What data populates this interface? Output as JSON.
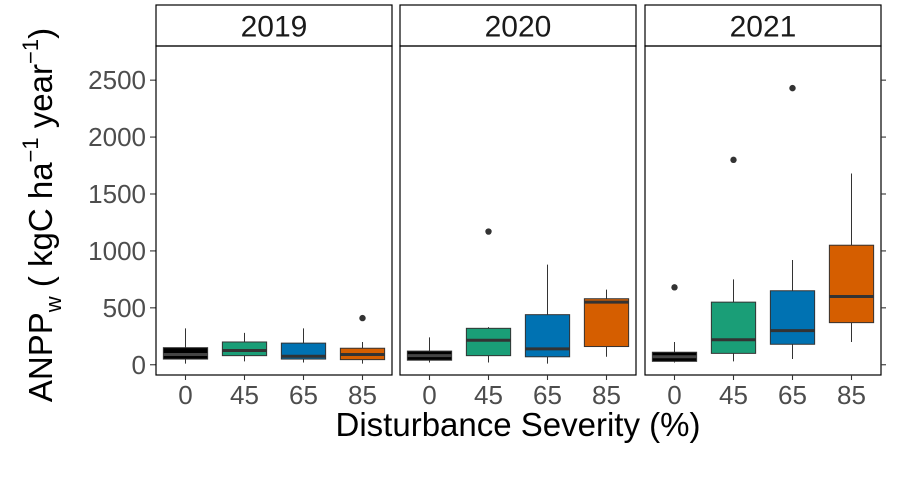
{
  "chart_data": {
    "type": "boxplot",
    "facets": [
      "2019",
      "2020",
      "2021"
    ],
    "categories": [
      "0",
      "45",
      "65",
      "85"
    ],
    "xlabel": "Disturbance Severity (%)",
    "ylabel": {
      "main": "ANPP",
      "sub": "w",
      "mid": " ( kgC ha",
      "sup1": "−1",
      "tail": " year",
      "sup2": "−1",
      "close": ")"
    },
    "y_ticks": [
      0,
      500,
      1000,
      1500,
      2000,
      2500
    ],
    "y_tick_labels": [
      "0",
      "500",
      "1000",
      "1500",
      "2000",
      "2500"
    ],
    "ylim": [
      -90,
      2800
    ],
    "colors": {
      "0": "#000000",
      "45": "#1a9e77",
      "65": "#0072b2",
      "85": "#d55e00"
    },
    "median_color_dark_box": "#444444",
    "panels": [
      {
        "facet": "2019",
        "boxes": [
          {
            "category": "0",
            "min": 10,
            "q1": 50,
            "median": 90,
            "q3": 150,
            "max": 320,
            "outliers": []
          },
          {
            "category": "45",
            "min": 30,
            "q1": 80,
            "median": 125,
            "q3": 200,
            "max": 280,
            "outliers": []
          },
          {
            "category": "65",
            "min": 20,
            "q1": 50,
            "median": 75,
            "q3": 190,
            "max": 320,
            "outliers": []
          },
          {
            "category": "85",
            "min": 10,
            "q1": 45,
            "median": 90,
            "q3": 145,
            "max": 200,
            "outliers": [
              410
            ]
          }
        ]
      },
      {
        "facet": "2020",
        "boxes": [
          {
            "category": "0",
            "min": 20,
            "q1": 40,
            "median": 80,
            "q3": 120,
            "max": 240,
            "outliers": []
          },
          {
            "category": "45",
            "min": 20,
            "q1": 80,
            "median": 215,
            "q3": 320,
            "max": 330,
            "outliers": [
              1170
            ]
          },
          {
            "category": "65",
            "min": 10,
            "q1": 70,
            "median": 140,
            "q3": 440,
            "max": 880,
            "outliers": []
          },
          {
            "category": "85",
            "min": 70,
            "q1": 160,
            "median": 550,
            "q3": 580,
            "max": 660,
            "outliers": []
          }
        ]
      },
      {
        "facet": "2021",
        "boxes": [
          {
            "category": "0",
            "min": 20,
            "q1": 30,
            "median": 70,
            "q3": 110,
            "max": 200,
            "outliers": [
              680
            ]
          },
          {
            "category": "45",
            "min": 30,
            "q1": 100,
            "median": 220,
            "q3": 550,
            "max": 750,
            "outliers": [
              1800
            ]
          },
          {
            "category": "65",
            "min": 50,
            "q1": 180,
            "median": 300,
            "q3": 650,
            "max": 920,
            "outliers": [
              2430
            ]
          },
          {
            "category": "85",
            "min": 200,
            "q1": 370,
            "median": 600,
            "q3": 1050,
            "max": 1680,
            "outliers": []
          }
        ]
      }
    ]
  }
}
